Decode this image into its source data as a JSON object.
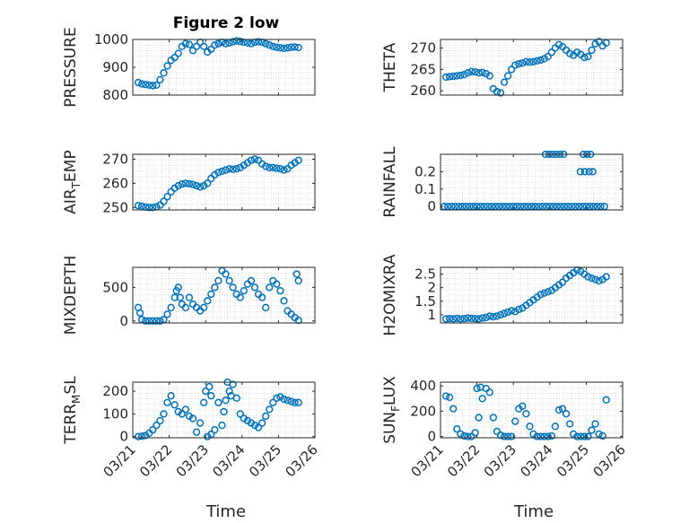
{
  "figure": {
    "title": "Figure 2 low",
    "xlabel": "Time"
  },
  "colors": {
    "marker": "#0072BD",
    "axis": "#262626",
    "grid": "#d0d0d0"
  },
  "chart_data": [
    {
      "type": "scatter",
      "ylabel_parts": [
        [
          "PRESSURE",
          ""
        ]
      ],
      "xlim": [
        0,
        5
      ],
      "ylim": [
        800,
        1000
      ],
      "yticks": [
        800,
        900,
        1000
      ],
      "yticklabels": [
        "800",
        "900",
        "1000"
      ],
      "xticklabels": [
        "03/21",
        "03/22",
        "03/23",
        "03/24",
        "03/25",
        "03/26"
      ],
      "show_xticklabels": false,
      "x": [
        0.15,
        0.25,
        0.35,
        0.45,
        0.55,
        0.65,
        0.75,
        0.85,
        0.95,
        1.05,
        1.15,
        1.25,
        1.35,
        1.45,
        1.55,
        1.65,
        1.75,
        1.85,
        1.95,
        2.05,
        2.15,
        2.25,
        2.35,
        2.45,
        2.55,
        2.65,
        2.75,
        2.85,
        2.95,
        3.05,
        3.15,
        3.25,
        3.35,
        3.45,
        3.55,
        3.65,
        3.75,
        3.85,
        3.95,
        4.05,
        4.15,
        4.25,
        4.35,
        4.45,
        4.55
      ],
      "y": [
        845,
        840,
        838,
        836,
        834,
        836,
        855,
        880,
        905,
        925,
        935,
        950,
        975,
        985,
        982,
        960,
        975,
        990,
        975,
        955,
        965,
        980,
        985,
        990,
        985,
        988,
        992,
        995,
        993,
        990,
        988,
        985,
        990,
        992,
        990,
        985,
        980,
        975,
        972,
        970,
        968,
        970,
        972,
        973,
        971
      ]
    },
    {
      "type": "scatter",
      "ylabel_parts": [
        [
          "THETA",
          ""
        ]
      ],
      "xlim": [
        0,
        5
      ],
      "ylim": [
        259,
        272
      ],
      "yticks": [
        260,
        265,
        270
      ],
      "yticklabels": [
        "260",
        "265",
        "270"
      ],
      "xticklabels": [
        "03/21",
        "03/22",
        "03/23",
        "03/24",
        "03/25",
        "03/26"
      ],
      "show_xticklabels": false,
      "x": [
        0.15,
        0.25,
        0.35,
        0.45,
        0.55,
        0.65,
        0.75,
        0.85,
        0.95,
        1.05,
        1.15,
        1.25,
        1.35,
        1.45,
        1.55,
        1.65,
        1.75,
        1.85,
        1.95,
        2.05,
        2.15,
        2.25,
        2.35,
        2.45,
        2.55,
        2.65,
        2.75,
        2.85,
        2.95,
        3.05,
        3.15,
        3.25,
        3.35,
        3.45,
        3.55,
        3.65,
        3.75,
        3.85,
        3.95,
        4.05,
        4.15,
        4.25,
        4.35,
        4.45,
        4.55
      ],
      "y": [
        263.2,
        263.3,
        263.4,
        263.5,
        263.6,
        263.8,
        264.2,
        264.5,
        264.4,
        264.2,
        264.3,
        264.0,
        263.5,
        260.5,
        259.8,
        259.5,
        262.0,
        263.5,
        265.0,
        266.0,
        266.3,
        266.5,
        266.8,
        266.7,
        266.8,
        267.0,
        267.2,
        267.5,
        268.0,
        269.0,
        270.0,
        270.8,
        270.3,
        269.5,
        268.7,
        268.3,
        269.0,
        268.5,
        267.8,
        268.0,
        269.5,
        271.0,
        271.5,
        270.5,
        271.2
      ]
    },
    {
      "type": "scatter",
      "ylabel_parts": [
        [
          "AIR",
          ""
        ],
        [
          "T",
          "sub"
        ],
        [
          "EMP",
          ""
        ]
      ],
      "xlim": [
        0,
        5
      ],
      "ylim": [
        249,
        272
      ],
      "yticks": [
        250,
        260,
        270
      ],
      "yticklabels": [
        "250",
        "260",
        "270"
      ],
      "xticklabels": [
        "03/21",
        "03/22",
        "03/23",
        "03/24",
        "03/25",
        "03/26"
      ],
      "show_xticklabels": false,
      "x": [
        0.15,
        0.25,
        0.35,
        0.45,
        0.55,
        0.65,
        0.75,
        0.85,
        0.95,
        1.05,
        1.15,
        1.25,
        1.35,
        1.45,
        1.55,
        1.65,
        1.75,
        1.85,
        1.95,
        2.05,
        2.15,
        2.25,
        2.35,
        2.45,
        2.55,
        2.65,
        2.75,
        2.85,
        2.95,
        3.05,
        3.15,
        3.25,
        3.35,
        3.45,
        3.55,
        3.65,
        3.75,
        3.85,
        3.95,
        4.05,
        4.15,
        4.25,
        4.35,
        4.45,
        4.55
      ],
      "y": [
        250.8,
        250.5,
        250.2,
        250.0,
        250.0,
        250.3,
        251.0,
        252.5,
        254.5,
        256.5,
        258.0,
        259.0,
        259.7,
        260.0,
        259.8,
        259.5,
        259.0,
        258.5,
        259.0,
        260.0,
        262.0,
        263.5,
        264.5,
        265.0,
        265.5,
        266.0,
        265.8,
        266.0,
        266.5,
        267.5,
        268.5,
        269.5,
        270.0,
        269.5,
        268.0,
        267.0,
        266.5,
        266.5,
        266.2,
        266.0,
        265.5,
        266.0,
        267.5,
        268.5,
        269.5
      ]
    },
    {
      "type": "scatter",
      "ylabel_parts": [
        [
          "RAINFALL",
          ""
        ]
      ],
      "xlim": [
        0,
        5
      ],
      "ylim": [
        -0.02,
        0.3
      ],
      "yticks": [
        0,
        0.1,
        0.2
      ],
      "yticklabels": [
        "0",
        "0.1",
        "0.2"
      ],
      "xticklabels": [
        "03/21",
        "03/22",
        "03/23",
        "03/24",
        "03/25",
        "03/26"
      ],
      "show_xticklabels": false,
      "x": [
        0.1,
        0.2,
        0.3,
        0.4,
        0.5,
        0.6,
        0.7,
        0.8,
        0.9,
        1.0,
        1.1,
        1.2,
        1.3,
        1.4,
        1.5,
        1.6,
        1.7,
        1.8,
        1.9,
        2.0,
        2.1,
        2.2,
        2.3,
        2.4,
        2.5,
        2.6,
        2.7,
        2.8,
        2.9,
        3.0,
        3.1,
        3.2,
        3.3,
        3.4,
        3.5,
        3.6,
        3.7,
        3.8,
        3.9,
        4.0,
        4.1,
        4.2,
        4.3,
        4.4,
        4.5,
        2.88,
        2.98,
        3.08,
        3.18,
        3.28,
        3.38,
        3.92,
        4.02,
        4.12,
        3.84,
        3.96,
        4.08,
        4.18
      ],
      "y": [
        0,
        0,
        0,
        0,
        0,
        0,
        0,
        0,
        0,
        0,
        0,
        0,
        0,
        0,
        0,
        0,
        0,
        0,
        0,
        0,
        0,
        0,
        0,
        0,
        0,
        0,
        0,
        0,
        0,
        0,
        0,
        0,
        0,
        0,
        0,
        0,
        0,
        0,
        0,
        0,
        0,
        0,
        0,
        0,
        0,
        0.3,
        0.3,
        0.3,
        0.3,
        0.3,
        0.3,
        0.3,
        0.3,
        0.3,
        0.2,
        0.2,
        0.2,
        0.2
      ]
    },
    {
      "type": "scatter",
      "ylabel_parts": [
        [
          "MIXDEPTH",
          ""
        ]
      ],
      "xlim": [
        0,
        5
      ],
      "ylim": [
        -30,
        800
      ],
      "yticks": [
        0,
        500
      ],
      "yticklabels": [
        "0",
        "500"
      ],
      "xticklabels": [
        "03/21",
        "03/22",
        "03/23",
        "03/24",
        "03/25",
        "03/26"
      ],
      "show_xticklabels": false,
      "x": [
        0.15,
        0.2,
        0.25,
        0.35,
        0.45,
        0.55,
        0.65,
        0.75,
        0.85,
        0.95,
        1.05,
        1.15,
        1.2,
        1.25,
        1.3,
        1.35,
        1.45,
        1.55,
        1.65,
        1.75,
        1.85,
        1.95,
        2.05,
        2.15,
        2.25,
        2.35,
        2.45,
        2.55,
        2.65,
        2.75,
        2.85,
        2.95,
        3.05,
        3.15,
        3.25,
        3.35,
        3.45,
        3.55,
        3.65,
        3.75,
        3.85,
        3.95,
        4.05,
        4.15,
        4.25,
        4.35,
        4.45,
        4.55,
        4.55,
        4.5
      ],
      "y": [
        200,
        120,
        20,
        0,
        0,
        0,
        0,
        0,
        20,
        100,
        200,
        350,
        450,
        500,
        350,
        250,
        200,
        350,
        250,
        200,
        150,
        200,
        300,
        400,
        500,
        600,
        750,
        700,
        600,
        500,
        400,
        350,
        450,
        550,
        600,
        500,
        400,
        350,
        200,
        500,
        600,
        550,
        450,
        300,
        150,
        100,
        50,
        10,
        600,
        700
      ]
    },
    {
      "type": "scatter",
      "ylabel_parts": [
        [
          "H2OMIXRA",
          ""
        ]
      ],
      "xlim": [
        0,
        5
      ],
      "ylim": [
        0.7,
        2.75
      ],
      "yticks": [
        1,
        1.5,
        2,
        2.5
      ],
      "yticklabels": [
        "1",
        "1.5",
        "2",
        "2.5"
      ],
      "xticklabels": [
        "03/21",
        "03/22",
        "03/23",
        "03/24",
        "03/25",
        "03/26"
      ],
      "show_xticklabels": false,
      "x": [
        0.15,
        0.25,
        0.35,
        0.45,
        0.55,
        0.65,
        0.75,
        0.85,
        0.95,
        1.05,
        1.15,
        1.25,
        1.35,
        1.45,
        1.55,
        1.65,
        1.75,
        1.85,
        1.95,
        2.05,
        2.15,
        2.25,
        2.35,
        2.45,
        2.55,
        2.65,
        2.75,
        2.85,
        2.95,
        3.05,
        3.15,
        3.25,
        3.35,
        3.45,
        3.55,
        3.65,
        3.75,
        3.85,
        3.95,
        4.05,
        4.15,
        4.25,
        4.35,
        4.45,
        4.55
      ],
      "y": [
        0.85,
        0.86,
        0.85,
        0.87,
        0.85,
        0.86,
        0.88,
        0.87,
        0.86,
        0.85,
        0.88,
        0.9,
        0.95,
        0.93,
        0.95,
        1.0,
        1.05,
        1.1,
        1.15,
        1.12,
        1.2,
        1.25,
        1.35,
        1.45,
        1.55,
        1.65,
        1.75,
        1.8,
        1.85,
        1.9,
        2.0,
        2.1,
        2.2,
        2.35,
        2.45,
        2.55,
        2.65,
        2.6,
        2.5,
        2.4,
        2.35,
        2.3,
        2.25,
        2.3,
        2.4
      ]
    },
    {
      "type": "scatter",
      "ylabel_parts": [
        [
          "TERR",
          ""
        ],
        [
          "M",
          "sub"
        ],
        [
          "SL",
          ""
        ]
      ],
      "xlim": [
        0,
        5
      ],
      "ylim": [
        -5,
        240
      ],
      "yticks": [
        0,
        100,
        200
      ],
      "yticklabels": [
        "0",
        "100",
        "200"
      ],
      "xticklabels": [
        "03/21",
        "03/22",
        "03/23",
        "03/24",
        "03/25",
        "03/26"
      ],
      "show_xticklabels": true,
      "x": [
        0.15,
        0.25,
        0.35,
        0.45,
        0.55,
        0.65,
        0.75,
        0.85,
        0.95,
        1.05,
        1.15,
        1.25,
        1.35,
        1.45,
        1.55,
        1.65,
        1.75,
        1.85,
        1.95,
        2.05,
        2.15,
        2.25,
        2.35,
        2.45,
        2.55,
        2.65,
        2.75,
        2.85,
        2.95,
        3.05,
        3.15,
        3.25,
        3.35,
        3.45,
        3.55,
        3.65,
        3.75,
        3.85,
        3.95,
        4.05,
        4.15,
        4.25,
        4.35,
        4.45,
        4.55,
        2.0,
        2.1,
        2.15,
        2.6,
        2.7,
        2.5
      ],
      "y": [
        0,
        2,
        5,
        15,
        30,
        50,
        70,
        100,
        150,
        180,
        140,
        110,
        100,
        120,
        90,
        80,
        20,
        60,
        150,
        0,
        10,
        30,
        150,
        50,
        160,
        200,
        230,
        170,
        100,
        80,
        70,
        60,
        50,
        40,
        60,
        90,
        120,
        150,
        170,
        175,
        165,
        160,
        155,
        150,
        150,
        200,
        220,
        180,
        240,
        180,
        110
      ]
    },
    {
      "type": "scatter",
      "ylabel_parts": [
        [
          "SUN",
          ""
        ],
        [
          "F",
          "sub"
        ],
        [
          "LUX",
          ""
        ]
      ],
      "xlim": [
        0,
        5
      ],
      "ylim": [
        -10,
        430
      ],
      "yticks": [
        0,
        200,
        400
      ],
      "yticklabels": [
        "0",
        "200",
        "400"
      ],
      "xticklabels": [
        "03/21",
        "03/22",
        "03/23",
        "03/24",
        "03/25",
        "03/26"
      ],
      "show_xticklabels": true,
      "x": [
        0.15,
        0.25,
        0.35,
        0.45,
        0.55,
        0.65,
        0.75,
        0.85,
        0.95,
        1.05,
        1.15,
        1.25,
        1.35,
        1.45,
        1.55,
        1.65,
        1.75,
        1.85,
        1.95,
        2.05,
        2.15,
        2.25,
        2.35,
        2.45,
        2.55,
        2.65,
        2.75,
        2.85,
        2.95,
        3.05,
        3.15,
        3.25,
        3.35,
        3.45,
        3.55,
        3.65,
        3.75,
        3.85,
        3.95,
        4.05,
        4.15,
        4.25,
        4.35,
        4.45,
        4.55,
        1.0,
        1.1
      ],
      "y": [
        320,
        310,
        220,
        60,
        20,
        5,
        0,
        0,
        30,
        150,
        300,
        380,
        350,
        150,
        40,
        10,
        0,
        0,
        0,
        120,
        220,
        240,
        180,
        80,
        20,
        0,
        0,
        0,
        0,
        5,
        80,
        210,
        220,
        180,
        100,
        20,
        0,
        0,
        0,
        0,
        50,
        100,
        20,
        5,
        290,
        380,
        390
      ]
    }
  ]
}
